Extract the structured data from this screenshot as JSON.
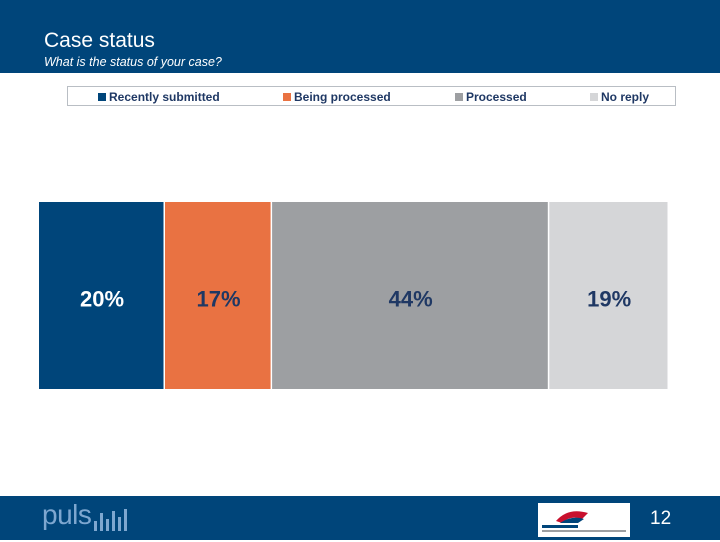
{
  "header": {
    "title": "Case status",
    "subtitle": "What is the status of your case?"
  },
  "chart_data": {
    "type": "bar",
    "orientation": "horizontal-stacked-100",
    "categories": [
      ""
    ],
    "series": [
      {
        "name": "Recently submitted",
        "values": [
          20
        ],
        "label": "20%",
        "color": "#00457a",
        "label_color": "#ffffff"
      },
      {
        "name": "Being processed",
        "values": [
          17
        ],
        "label": "17%",
        "color": "#e97242",
        "label_color": "#1f3864"
      },
      {
        "name": "Processed",
        "values": [
          44
        ],
        "label": "44%",
        "color": "#9d9fa2",
        "label_color": "#1f3864"
      },
      {
        "name": "No reply",
        "values": [
          19
        ],
        "label": "19%",
        "color": "#d5d6d8",
        "label_color": "#1f3864"
      }
    ],
    "xlim": [
      0,
      100
    ],
    "legend_position": "top",
    "grid": false
  },
  "footer": {
    "logo_text": "puls",
    "page_number": "12"
  }
}
